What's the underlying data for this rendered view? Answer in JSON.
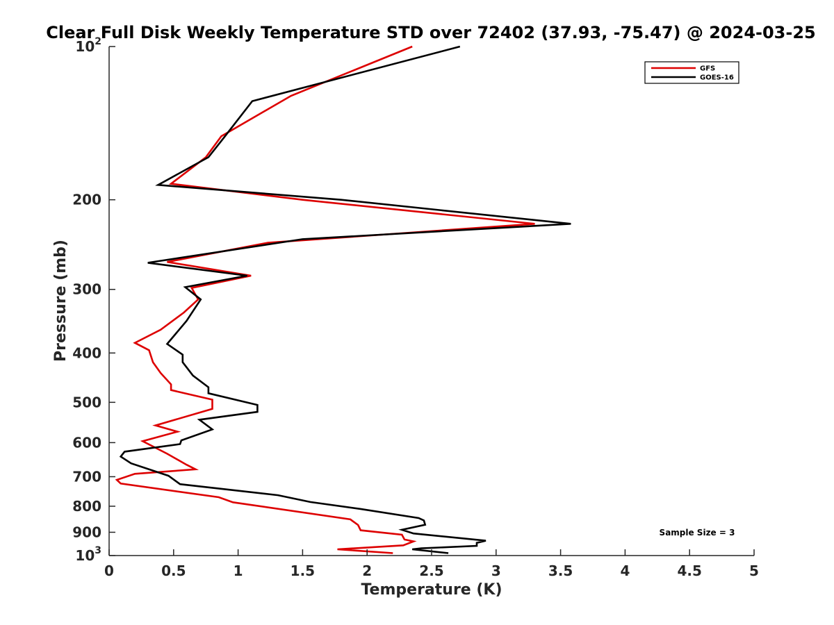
{
  "chart_data": {
    "type": "line",
    "title": "Clear Full Disk Weekly Temperature STD over 72402 (37.93, -75.47) @ 2024-03-25",
    "xlabel": "Temperature (K)",
    "ylabel": "Pressure (mb)",
    "xlim": [
      0,
      5
    ],
    "ylim": [
      100,
      1000
    ],
    "yscale": "log",
    "y_reversed": true,
    "xticks": [
      0,
      0.5,
      1,
      1.5,
      2,
      2.5,
      3,
      3.5,
      4,
      4.5,
      5
    ],
    "xtick_labels": [
      "0",
      "0.5",
      "1",
      "1.5",
      "2",
      "2.5",
      "3",
      "3.5",
      "4",
      "4.5",
      "5"
    ],
    "yticks": [
      {
        "value": 100,
        "base": "10",
        "exp": "2"
      },
      {
        "value": 200,
        "label": "200"
      },
      {
        "value": 300,
        "label": "300"
      },
      {
        "value": 400,
        "label": "400"
      },
      {
        "value": 500,
        "label": "500"
      },
      {
        "value": 600,
        "label": "600"
      },
      {
        "value": 700,
        "label": "700"
      },
      {
        "value": 800,
        "label": "800"
      },
      {
        "value": 900,
        "label": "900"
      },
      {
        "value": 1000,
        "base": "10",
        "exp": "3"
      }
    ],
    "legend_position": "top-right",
    "annotation": "Sample Size = 3",
    "series": [
      {
        "name": "GFS",
        "color": "#dd0000",
        "points": [
          [
            2.35,
            100
          ],
          [
            1.41,
            125
          ],
          [
            0.87,
            150
          ],
          [
            0.75,
            165
          ],
          [
            0.48,
            186
          ],
          [
            1.5,
            200
          ],
          [
            3.3,
            223
          ],
          [
            1.23,
            243
          ],
          [
            0.45,
            265
          ],
          [
            1.1,
            282
          ],
          [
            0.64,
            298
          ],
          [
            0.69,
            314
          ],
          [
            0.58,
            333
          ],
          [
            0.4,
            360
          ],
          [
            0.2,
            382
          ],
          [
            0.31,
            395
          ],
          [
            0.34,
            417
          ],
          [
            0.4,
            438
          ],
          [
            0.48,
            461
          ],
          [
            0.48,
            473
          ],
          [
            0.8,
            494
          ],
          [
            0.8,
            515
          ],
          [
            0.36,
            555
          ],
          [
            0.53,
            571
          ],
          [
            0.26,
            596
          ],
          [
            0.45,
            631
          ],
          [
            0.6,
            663
          ],
          [
            0.67,
            677
          ],
          [
            0.2,
            691
          ],
          [
            0.06,
            710
          ],
          [
            0.09,
            722
          ],
          [
            0.85,
            768
          ],
          [
            0.96,
            786
          ],
          [
            1.87,
            849
          ],
          [
            1.93,
            871
          ],
          [
            1.95,
            892
          ],
          [
            2.27,
            910
          ],
          [
            2.29,
            930
          ],
          [
            2.36,
            938
          ],
          [
            2.28,
            955
          ],
          [
            1.77,
            972
          ],
          [
            2.2,
            989
          ]
        ]
      },
      {
        "name": "GOES-16",
        "color": "#000000",
        "points": [
          [
            2.72,
            100
          ],
          [
            1.11,
            128
          ],
          [
            0.89,
            151
          ],
          [
            0.77,
            165
          ],
          [
            0.38,
            187
          ],
          [
            1.8,
            200
          ],
          [
            3.58,
            223
          ],
          [
            1.5,
            239
          ],
          [
            0.3,
            266
          ],
          [
            1.07,
            282
          ],
          [
            0.59,
            297
          ],
          [
            0.71,
            314
          ],
          [
            0.6,
            346
          ],
          [
            0.45,
            384
          ],
          [
            0.57,
            403
          ],
          [
            0.57,
            417
          ],
          [
            0.65,
            443
          ],
          [
            0.77,
            467
          ],
          [
            0.77,
            480
          ],
          [
            1.15,
            506
          ],
          [
            1.15,
            522
          ],
          [
            0.7,
            541
          ],
          [
            0.8,
            565
          ],
          [
            0.56,
            594
          ],
          [
            0.55,
            604
          ],
          [
            0.12,
            625
          ],
          [
            0.09,
            639
          ],
          [
            0.17,
            659
          ],
          [
            0.46,
            697
          ],
          [
            0.55,
            724
          ],
          [
            1.31,
            761
          ],
          [
            1.56,
            785
          ],
          [
            1.95,
            810
          ],
          [
            2.4,
            844
          ],
          [
            2.44,
            853
          ],
          [
            2.45,
            870
          ],
          [
            2.27,
            890
          ],
          [
            2.36,
            905
          ],
          [
            2.92,
            935
          ],
          [
            2.85,
            944
          ],
          [
            2.85,
            957
          ],
          [
            2.42,
            968
          ],
          [
            2.35,
            972
          ],
          [
            2.63,
            989
          ]
        ]
      }
    ]
  }
}
